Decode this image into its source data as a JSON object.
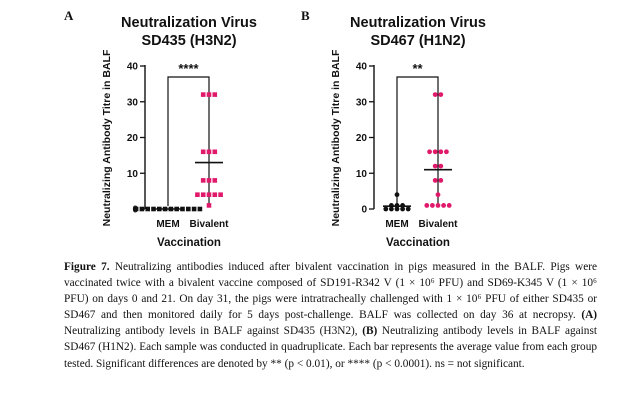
{
  "chart_data": [
    {
      "type": "scatter",
      "panel": "A",
      "title_line1": "Neutralization Virus",
      "title_line2": "SD435 (H3N2)",
      "ylabel": "Neutralizing Antibody Titre in BALF",
      "xlabel": "Vaccination",
      "categories": [
        "MEM",
        "Bivalent"
      ],
      "yticks": [
        "0",
        "10",
        "20",
        "30",
        "40"
      ],
      "ylim": [
        0,
        40
      ],
      "significance": "****",
      "marker": "square",
      "series": [
        {
          "name": "MEM",
          "color": "#111111",
          "values": [
            0,
            0,
            0,
            0,
            0,
            0,
            0,
            0,
            0,
            0,
            0,
            0
          ],
          "mean": 0
        },
        {
          "name": "Bivalent",
          "color": "#e0196b",
          "values": [
            1,
            4,
            4,
            4,
            4,
            4,
            8,
            8,
            8,
            16,
            16,
            16,
            32,
            32,
            32
          ],
          "mean": 13
        }
      ]
    },
    {
      "type": "scatter",
      "panel": "B",
      "title_line1": "Neutralization Virus",
      "title_line2": "SD467 (H1N2)",
      "ylabel": "Neutralizing Antibody Titre in BALF",
      "xlabel": "Vaccination",
      "categories": [
        "MEM",
        "Bivalent"
      ],
      "yticks": [
        "0",
        "10",
        "20",
        "30",
        "40"
      ],
      "ylim": [
        0,
        40
      ],
      "significance": "**",
      "marker": "circle",
      "series": [
        {
          "name": "MEM",
          "color": "#111111",
          "values": [
            0,
            0,
            0,
            0,
            0,
            1,
            1,
            1,
            4
          ],
          "mean": 0.8
        },
        {
          "name": "Bivalent",
          "color": "#e0196b",
          "values": [
            1,
            1,
            1,
            1,
            1,
            4,
            8,
            8,
            12,
            12,
            16,
            16,
            16,
            16,
            32,
            32
          ],
          "mean": 11
        }
      ]
    }
  ],
  "caption": {
    "label": "Figure 7.",
    "text": " Neutralizing antibodies induced after bivalent vaccination in pigs measured in the BALF. Pigs were vaccinated twice with a bivalent vaccine composed of SD191-R342 V (1 × 10⁶ PFU) and SD69-K345 V (1 × 10⁶ PFU) on days 0 and 21. On day 31, the pigs were intratracheally challenged with 1 × 10⁶ PFU of either SD435 or SD467 and then monitored daily for 5 days post-challenge. BALF was collected on day 36 at necropsy. ",
    "a_label": "(A)",
    "a_text": " Neutralizing antibody levels in BALF against SD435 (H3N2), ",
    "b_label": "(B)",
    "b_text": " Neutralizing antibody levels in BALF against SD467 (H1N2). Each sample was conducted in quadruplicate. Each bar represents the average value from each group tested. Significant differences are denoted by ** (p < 0.01), or **** (p < 0.0001). ns = not significant."
  }
}
